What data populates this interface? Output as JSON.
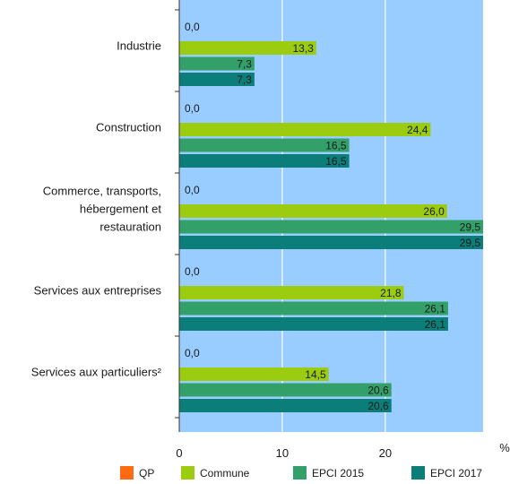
{
  "chart_data": {
    "type": "bar",
    "orientation": "horizontal",
    "categories": [
      [
        "Industrie"
      ],
      [
        "Construction"
      ],
      [
        "Commerce, transports,",
        "hébergement et",
        "restauration"
      ],
      [
        "Services aux entreprises"
      ],
      [
        "Services aux particuliers²"
      ]
    ],
    "series": [
      {
        "name": "QP",
        "color": "#ff6a13",
        "values": [
          0.0,
          0.0,
          0.0,
          0.0,
          0.0
        ],
        "labels": [
          "0,0",
          "0,0",
          "0,0",
          "0,0",
          "0,0"
        ]
      },
      {
        "name": "Commune",
        "color": "#9bcc10",
        "values": [
          13.3,
          24.4,
          26.0,
          21.8,
          14.5
        ],
        "labels": [
          "13,3",
          "24,4",
          "26,0",
          "21,8",
          "14,5"
        ]
      },
      {
        "name": "EPCI 2015",
        "color": "#33a06a",
        "values": [
          7.3,
          16.5,
          29.5,
          26.1,
          20.6
        ],
        "labels": [
          "7,3",
          "16,5",
          "29,5",
          "26,1",
          "20,6"
        ]
      },
      {
        "name": "EPCI 2017",
        "color": "#0b7e79",
        "values": [
          7.3,
          16.5,
          29.5,
          26.1,
          20.6
        ],
        "labels": [
          "7,3",
          "16,5",
          "29,5",
          "26,1",
          "20,6"
        ]
      }
    ],
    "xlim": [
      0,
      29.5
    ],
    "xticks": [
      0,
      10,
      20
    ],
    "xtick_labels": [
      "0",
      "10",
      "20"
    ],
    "xlabel": "%",
    "grid": true,
    "plot_background": "#99ccff",
    "legend": "bottom"
  }
}
